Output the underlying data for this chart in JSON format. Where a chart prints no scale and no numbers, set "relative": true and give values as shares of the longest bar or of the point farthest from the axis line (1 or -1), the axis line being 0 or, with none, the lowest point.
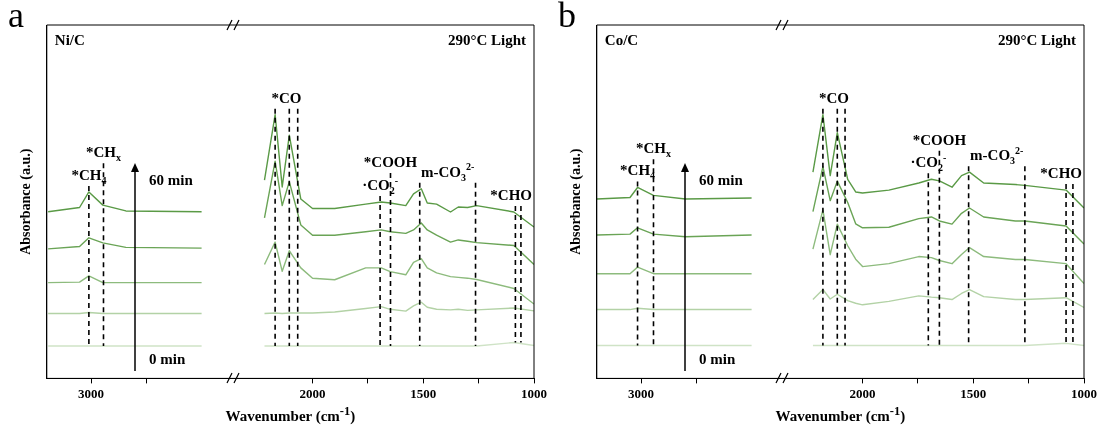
{
  "chart_data": [
    {
      "type": "line",
      "relative": true,
      "title": "a",
      "xlabel": "Wavenumber (cm$^{-1}$)",
      "ylabel": "Absorbance (a.u.)",
      "xlim": [
        3200,
        1000
      ],
      "xticks": [
        3000,
        {
          "value": 2750,
          "label": null
        },
        2000,
        {
          "value": 1750,
          "label": null
        },
        1500,
        {
          "value": 1250,
          "label": null
        },
        1000
      ],
      "x": [
        3194,
        3052,
        3010,
        2947,
        2843,
        2501,
        2350,
        2217,
        2169,
        2137,
        2105,
        2053,
        2000,
        1900,
        1760,
        1690,
        1649,
        1579,
        1544,
        1509,
        1482,
        1440,
        1377,
        1342,
        1300,
        1259,
        1091,
        1000
      ],
      "series": [
        {
          "color": "#5a9a46",
          "values": [
            0.632,
            0.648,
            0.707,
            0.657,
            0.635,
            0.632,
            null,
            0.752,
            1.0,
            0.726,
            0.922,
            0.68,
            0.644,
            0.644,
            0.661,
            0.669,
            0.665,
            0.655,
            0.7,
            0.719,
            0.665,
            0.661,
            0.631,
            0.65,
            0.648,
            0.655,
            0.631,
            0.574
          ]
        },
        {
          "color": "#6aa456",
          "values": [
            0.491,
            0.5,
            0.533,
            0.514,
            0.497,
            0.494,
            null,
            0.609,
            0.824,
            0.655,
            0.746,
            0.582,
            0.543,
            0.543,
            0.556,
            0.563,
            0.556,
            0.55,
            0.563,
            0.589,
            0.563,
            0.543,
            0.517,
            0.525,
            0.52,
            0.515,
            0.504,
            0.432
          ]
        },
        {
          "color": "#8dbb7d",
          "values": [
            0.363,
            0.365,
            0.389,
            0.363,
            0.363,
            0.363,
            null,
            0.432,
            0.517,
            0.406,
            0.484,
            0.419,
            0.38,
            0.374,
            0.419,
            0.419,
            0.405,
            0.393,
            0.44,
            0.454,
            0.419,
            0.4,
            0.386,
            0.383,
            0.38,
            0.375,
            0.341,
            0.282
          ]
        },
        {
          "color": "#b3d2a6",
          "values": [
            0.246,
            0.246,
            0.25,
            0.246,
            0.246,
            0.246,
            null,
            0.246,
            0.248,
            0.246,
            0.248,
            0.248,
            0.248,
            0.252,
            0.265,
            0.272,
            0.262,
            0.255,
            0.275,
            0.289,
            0.27,
            0.262,
            0.26,
            0.262,
            0.258,
            0.26,
            0.267,
            0.256
          ]
        },
        {
          "color": "#cfe3c6",
          "values": [
            0.123,
            0.123,
            0.123,
            0.123,
            0.123,
            0.123,
            null,
            0.123,
            0.123,
            0.123,
            0.123,
            0.123,
            0.123,
            0.123,
            0.123,
            0.123,
            0.123,
            0.123,
            0.123,
            0.123,
            0.123,
            0.123,
            0.123,
            0.123,
            0.123,
            0.123,
            0.136,
            0.125
          ]
        }
      ],
      "ref_lines": [
        {
          "axis": "x",
          "value": 3010,
          "label": "*CH$_{4}$",
          "line_style": "dashed",
          "color": "#000000"
        },
        {
          "axis": "x",
          "value": 2944,
          "label": "*CH$_{x}$",
          "line_style": "dashed",
          "color": "#000000"
        },
        {
          "axis": "x",
          "value": 2169,
          "label": "*CO",
          "line_style": "dashed",
          "color": "#000000"
        },
        {
          "axis": "x",
          "value": 2105,
          "line_style": "dashed",
          "color": "#000000"
        },
        {
          "axis": "x",
          "value": 2067,
          "line_style": "dashed",
          "color": "#000000"
        },
        {
          "axis": "x",
          "value": 1695,
          "label": "·CO$_{2}$$^{-}$",
          "line_style": "dashed",
          "color": "#000000"
        },
        {
          "axis": "x",
          "value": 1648,
          "label": "*COOH",
          "line_style": "dashed",
          "color": "#000000"
        },
        {
          "axis": "x",
          "value": 1516,
          "label": "m-CO$_{3}$$^{2-}$",
          "line_style": "dashed",
          "color": "#000000"
        },
        {
          "axis": "x",
          "value": 1264,
          "line_style": "dashed",
          "color": "#000000"
        },
        {
          "axis": "x",
          "value": 1084,
          "label": "*CHO",
          "line_style": "dashed",
          "color": "#000000"
        },
        {
          "axis": "x",
          "value": 1059,
          "line_style": "dashed",
          "color": "#000000"
        }
      ],
      "annotations": [
        "Ni/C",
        "290°C Light",
        "60 min",
        "0 min"
      ]
    },
    {
      "type": "line",
      "relative": true,
      "title": "b",
      "xlabel": "Wavenumber (cm$^{-1}$)",
      "ylabel": "Absorbance (a.u.)",
      "xlim": [
        3200,
        1000
      ],
      "xticks": [
        3000,
        {
          "value": 2750,
          "label": null
        },
        2000,
        {
          "value": 1750,
          "label": null
        },
        1500,
        {
          "value": 1250,
          "label": null
        },
        1000
      ],
      "x": [
        3200,
        3050,
        3016,
        2944,
        2800,
        2501,
        2360,
        2224,
        2179,
        2146,
        2114,
        2067,
        2031,
        2000,
        1881,
        1746,
        1689,
        1653,
        1596,
        1553,
        1517,
        1453,
        1310,
        1267,
        1081,
        1000
      ],
      "series": [
        {
          "color": "#5a9a46",
          "values": [
            0.68,
            0.686,
            0.724,
            0.694,
            0.68,
            0.684,
            null,
            0.782,
            1.0,
            0.769,
            0.932,
            0.755,
            0.707,
            0.703,
            0.714,
            0.741,
            0.755,
            0.749,
            0.725,
            0.769,
            0.782,
            0.741,
            0.735,
            0.732,
            0.714,
            0.646
          ]
        },
        {
          "color": "#6aa456",
          "values": [
            0.544,
            0.547,
            0.571,
            0.547,
            0.537,
            0.544,
            null,
            0.632,
            0.803,
            0.674,
            0.748,
            0.667,
            0.586,
            0.571,
            0.573,
            0.606,
            0.612,
            0.597,
            0.585,
            0.626,
            0.646,
            0.612,
            0.597,
            0.597,
            0.578,
            0.51
          ]
        },
        {
          "color": "#8dbb7d",
          "values": [
            0.397,
            0.397,
            0.422,
            0.397,
            0.397,
            0.397,
            null,
            0.49,
            0.639,
            0.469,
            0.585,
            0.503,
            0.452,
            0.424,
            0.435,
            0.462,
            0.458,
            0.447,
            0.435,
            0.47,
            0.496,
            0.462,
            0.451,
            0.451,
            0.435,
            0.36
          ]
        },
        {
          "color": "#b3d2a6",
          "values": [
            0.261,
            0.261,
            0.266,
            0.261,
            0.261,
            0.261,
            null,
            0.299,
            0.337,
            0.301,
            0.319,
            0.295,
            0.285,
            0.279,
            0.292,
            0.313,
            0.308,
            0.306,
            0.299,
            0.322,
            0.337,
            0.31,
            0.299,
            0.299,
            0.306,
            0.269
          ]
        },
        {
          "color": "#cfe3c6",
          "values": [
            0.125,
            0.125,
            0.125,
            0.125,
            0.125,
            0.125,
            null,
            0.125,
            0.125,
            0.125,
            0.125,
            0.125,
            0.125,
            0.125,
            0.125,
            0.125,
            0.125,
            0.125,
            0.125,
            0.125,
            0.125,
            0.125,
            0.125,
            0.125,
            0.133,
            0.125
          ]
        }
      ],
      "ref_lines": [
        {
          "axis": "x",
          "value": 3016,
          "label": "*CH$_{4}$",
          "line_style": "dashed",
          "color": "#000000"
        },
        {
          "axis": "x",
          "value": 2944,
          "label": "*CH$_{x}$",
          "line_style": "dashed",
          "color": "#000000"
        },
        {
          "axis": "x",
          "value": 2179,
          "label": "*CO",
          "line_style": "dashed",
          "color": "#000000"
        },
        {
          "axis": "x",
          "value": 2114,
          "line_style": "dashed",
          "color": "#000000"
        },
        {
          "axis": "x",
          "value": 2079,
          "line_style": "dashed",
          "color": "#000000"
        },
        {
          "axis": "x",
          "value": 1703,
          "label": "·CO$_{2}$$^{-}$",
          "line_style": "dashed",
          "color": "#000000"
        },
        {
          "axis": "x",
          "value": 1653,
          "label": "*COOH",
          "line_style": "dashed",
          "color": "#000000"
        },
        {
          "axis": "x",
          "value": 1521,
          "label": "m-CO$_{3}$$^{2-}$",
          "line_style": "dashed",
          "color": "#000000"
        },
        {
          "axis": "x",
          "value": 1267,
          "line_style": "dashed",
          "color": "#000000"
        },
        {
          "axis": "x",
          "value": 1081,
          "label": "*CHO",
          "line_style": "dashed",
          "color": "#000000"
        },
        {
          "axis": "x",
          "value": 1050,
          "line_style": "dashed",
          "color": "#000000"
        }
      ],
      "annotations": [
        "Co/C",
        "290°C Light",
        "60 min",
        "0 min"
      ]
    }
  ]
}
